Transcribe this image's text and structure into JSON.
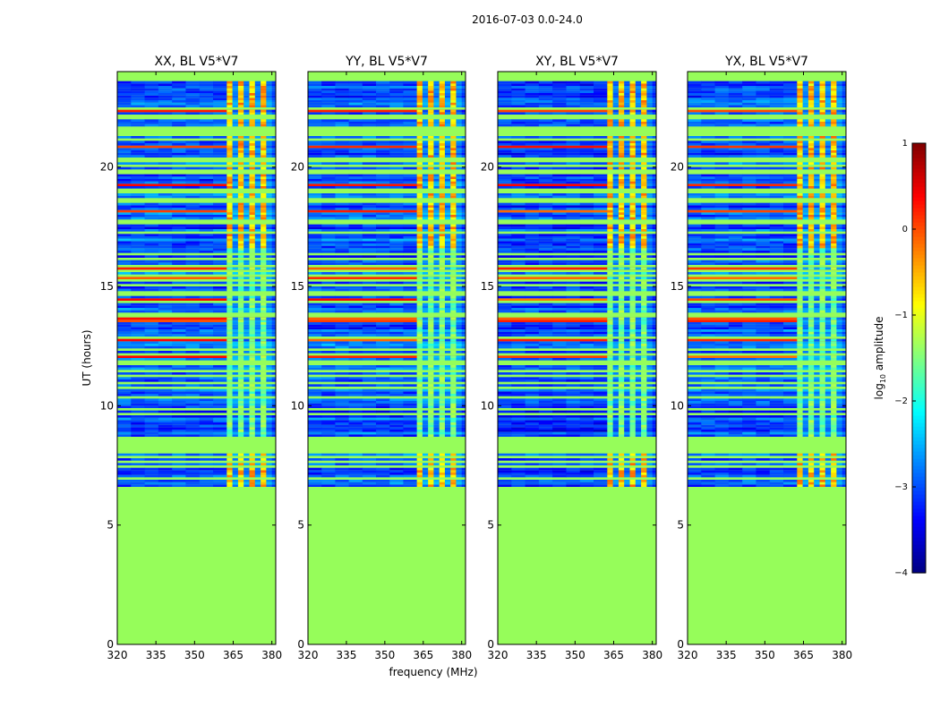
{
  "figure_title": "2016-07-03 0.0-24.0",
  "chart_data": {
    "type": "heatmap",
    "panels": [
      {
        "title": "XX, BL V5*V7"
      },
      {
        "title": "YY, BL V5*V7"
      },
      {
        "title": "XY, BL V5*V7"
      },
      {
        "title": "YX, BL V5*V7"
      }
    ],
    "xlabel": "frequency (MHz)",
    "ylabel": "UT (hours)",
    "xlim": [
      320,
      381.5
    ],
    "ylim": [
      0,
      24
    ],
    "xticks": [
      320,
      335,
      350,
      365,
      380
    ],
    "yticks": [
      0,
      5,
      10,
      15,
      20
    ],
    "data_start_hour": 6.6,
    "data_end_hour": 23.6,
    "rfi_band_mhz": [
      362.5,
      382.5
    ],
    "colorbar": {
      "label": "log10 amplitude",
      "label_main": "log",
      "label_sub": "10",
      "label_tail": " amplitude",
      "range": [
        -4,
        1
      ],
      "ticks": [
        -4,
        -3,
        -2,
        -1,
        0,
        1
      ],
      "tick_labels": [
        "−4",
        "−3",
        "−2",
        "−1",
        "0",
        "1"
      ],
      "colormap": "jet",
      "fill_value": -1.25
    }
  },
  "colors": {
    "fill_green": "#96fd5a",
    "frame": "#000000"
  }
}
